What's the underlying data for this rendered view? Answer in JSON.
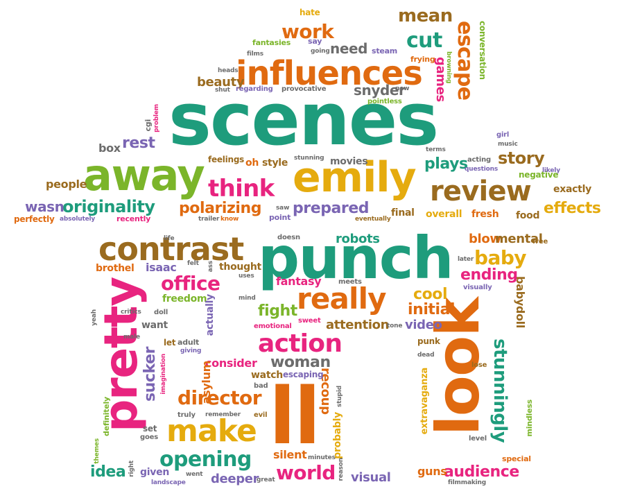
{
  "colors": {
    "teal": "#1e9c7c",
    "orange": "#e06a10",
    "gold": "#e5ab0e",
    "brown": "#9a6b1f",
    "pink": "#e8247f",
    "gray": "#6c6c6c",
    "purple": "#7a65b3",
    "green": "#7bb52a"
  },
  "words": [
    {
      "name": "scenes",
      "text": "scenes"
    },
    {
      "name": "punch",
      "text": "punch"
    },
    {
      "name": "ll",
      "text": "ll"
    },
    {
      "name": "look",
      "text": "look"
    },
    {
      "name": "pretty",
      "text": "pretty"
    },
    {
      "name": "influences",
      "text": "influences"
    },
    {
      "name": "away",
      "text": "away"
    },
    {
      "name": "emily",
      "text": "emily"
    },
    {
      "name": "review",
      "text": "review"
    },
    {
      "name": "contrast",
      "text": "contrast"
    },
    {
      "name": "really",
      "text": "really"
    },
    {
      "name": "make",
      "text": "make"
    },
    {
      "name": "action",
      "text": "action"
    },
    {
      "name": "opening",
      "text": "opening"
    },
    {
      "name": "think",
      "text": "think"
    },
    {
      "name": "originality",
      "text": "originality"
    },
    {
      "name": "office",
      "text": "office"
    },
    {
      "name": "director",
      "text": "director"
    },
    {
      "name": "world",
      "text": "world"
    },
    {
      "name": "work",
      "text": "work"
    },
    {
      "name": "cut",
      "text": "cut"
    },
    {
      "name": "escape",
      "text": "escape"
    },
    {
      "name": "mean",
      "text": "mean"
    },
    {
      "name": "stunningly",
      "text": "stunningly"
    },
    {
      "name": "baby",
      "text": "baby"
    },
    {
      "name": "audience",
      "text": "audience"
    },
    {
      "name": "story",
      "text": "story"
    },
    {
      "name": "plays",
      "text": "plays"
    },
    {
      "name": "effects",
      "text": "effects"
    },
    {
      "name": "woman",
      "text": "woman"
    },
    {
      "name": "polarizing",
      "text": "polarizing"
    },
    {
      "name": "prepared",
      "text": "prepared"
    },
    {
      "name": "wasn",
      "text": "wasn"
    },
    {
      "name": "need",
      "text": "need"
    },
    {
      "name": "games",
      "text": "games"
    },
    {
      "name": "snyder",
      "text": "snyder"
    },
    {
      "name": "beauty",
      "text": "beauty"
    },
    {
      "name": "rest",
      "text": "rest"
    },
    {
      "name": "box",
      "text": "box"
    },
    {
      "name": "people",
      "text": "people"
    },
    {
      "name": "ending",
      "text": "ending"
    },
    {
      "name": "cool",
      "text": "cool"
    },
    {
      "name": "initial",
      "text": "initial"
    },
    {
      "name": "video",
      "text": "video"
    },
    {
      "name": "fight",
      "text": "fight"
    },
    {
      "name": "attention",
      "text": "attention"
    },
    {
      "name": "robots",
      "text": "robots"
    },
    {
      "name": "blow",
      "text": "blow"
    },
    {
      "name": "mental",
      "text": "mental"
    },
    {
      "name": "consider",
      "text": "consider"
    },
    {
      "name": "recoup",
      "text": "recoup"
    },
    {
      "name": "sucker",
      "text": "sucker"
    },
    {
      "name": "idea",
      "text": "idea"
    },
    {
      "name": "visual",
      "text": "visual"
    },
    {
      "name": "deeper",
      "text": "deeper"
    },
    {
      "name": "silent",
      "text": "silent"
    },
    {
      "name": "guns",
      "text": "guns"
    },
    {
      "name": "fantasy",
      "text": "fantasy"
    },
    {
      "name": "thought",
      "text": "thought"
    },
    {
      "name": "freedom",
      "text": "freedom"
    },
    {
      "name": "isaac",
      "text": "isaac"
    },
    {
      "name": "brothel",
      "text": "brothel"
    },
    {
      "name": "final",
      "text": "final"
    },
    {
      "name": "overall",
      "text": "overall"
    },
    {
      "name": "fresh",
      "text": "fresh"
    },
    {
      "name": "food",
      "text": "food"
    },
    {
      "name": "exactly",
      "text": "exactly"
    },
    {
      "name": "negative",
      "text": "negative"
    },
    {
      "name": "movies",
      "text": "movies"
    },
    {
      "name": "style",
      "text": "style"
    },
    {
      "name": "oh",
      "text": "oh"
    },
    {
      "name": "feelings",
      "text": "feelings"
    },
    {
      "name": "recently",
      "text": "recently"
    },
    {
      "name": "perfectly",
      "text": "perfectly"
    },
    {
      "name": "absolutely",
      "text": "absolutely"
    },
    {
      "name": "hate",
      "text": "hate"
    },
    {
      "name": "fantasies",
      "text": "fantasies"
    },
    {
      "name": "say",
      "text": "say"
    },
    {
      "name": "films",
      "text": "films"
    },
    {
      "name": "going",
      "text": "going"
    },
    {
      "name": "steam",
      "text": "steam"
    },
    {
      "name": "frying",
      "text": "frying"
    },
    {
      "name": "browning",
      "text": "browning"
    },
    {
      "name": "conversation",
      "text": "conversation"
    },
    {
      "name": "heads",
      "text": "heads"
    },
    {
      "name": "shut",
      "text": "shut"
    },
    {
      "name": "regarding",
      "text": "regarding"
    },
    {
      "name": "provocative",
      "text": "provocative"
    },
    {
      "name": "pointless",
      "text": "pointless"
    },
    {
      "name": "new",
      "text": "new"
    },
    {
      "name": "problem",
      "text": "problem"
    },
    {
      "name": "cgi",
      "text": "cgi"
    },
    {
      "name": "girl",
      "text": "girl"
    },
    {
      "name": "music",
      "text": "music"
    },
    {
      "name": "terms",
      "text": "terms"
    },
    {
      "name": "acting",
      "text": "acting"
    },
    {
      "name": "questions",
      "text": "questions"
    },
    {
      "name": "likely",
      "text": "likely"
    },
    {
      "name": "stunning",
      "text": "stunning"
    },
    {
      "name": "saw",
      "text": "saw"
    },
    {
      "name": "trailer",
      "text": "trailer"
    },
    {
      "name": "know",
      "text": "know"
    },
    {
      "name": "point",
      "text": "point"
    },
    {
      "name": "eventually",
      "text": "eventually"
    },
    {
      "name": "life",
      "text": "life"
    },
    {
      "name": "doesn",
      "text": "doesn"
    },
    {
      "name": "felt",
      "text": "felt"
    },
    {
      "name": "ass",
      "text": "ass"
    },
    {
      "name": "uses",
      "text": "uses"
    },
    {
      "name": "meets",
      "text": "meets"
    },
    {
      "name": "mind",
      "text": "mind"
    },
    {
      "name": "emotional",
      "text": "emotional"
    },
    {
      "name": "sweet",
      "text": "sweet"
    },
    {
      "name": "tone",
      "text": "tone"
    },
    {
      "name": "later",
      "text": "later"
    },
    {
      "name": "free",
      "text": "free"
    },
    {
      "name": "visually",
      "text": "visually"
    },
    {
      "name": "babydoll",
      "text": "babydoll"
    },
    {
      "name": "critics",
      "text": "critics"
    },
    {
      "name": "doll",
      "text": "doll"
    },
    {
      "name": "yeah",
      "text": "yeah"
    },
    {
      "name": "want",
      "text": "want"
    },
    {
      "name": "male",
      "text": "male"
    },
    {
      "name": "let",
      "text": "let"
    },
    {
      "name": "adult",
      "text": "adult"
    },
    {
      "name": "giving",
      "text": "giving"
    },
    {
      "name": "actually",
      "text": "actually"
    },
    {
      "name": "punk",
      "text": "punk"
    },
    {
      "name": "dead",
      "text": "dead"
    },
    {
      "name": "lose",
      "text": "lose"
    },
    {
      "name": "imagination",
      "text": "imagination"
    },
    {
      "name": "asylum",
      "text": "asylum"
    },
    {
      "name": "watch",
      "text": "watch"
    },
    {
      "name": "escaping",
      "text": "escaping"
    },
    {
      "name": "bad",
      "text": "bad"
    },
    {
      "name": "stupid",
      "text": "stupid"
    },
    {
      "name": "probably",
      "text": "probably"
    },
    {
      "name": "extravaganza",
      "text": "extravaganza"
    },
    {
      "name": "definitely",
      "text": "definitely"
    },
    {
      "name": "truly",
      "text": "truly"
    },
    {
      "name": "remember",
      "text": "remember"
    },
    {
      "name": "evil",
      "text": "evil"
    },
    {
      "name": "mindless",
      "text": "mindless"
    },
    {
      "name": "set",
      "text": "set"
    },
    {
      "name": "goes",
      "text": "goes"
    },
    {
      "name": "themes",
      "text": "themes"
    },
    {
      "name": "level",
      "text": "level"
    },
    {
      "name": "minutes",
      "text": "minutes"
    },
    {
      "name": "special",
      "text": "special"
    },
    {
      "name": "right",
      "text": "right"
    },
    {
      "name": "given",
      "text": "given"
    },
    {
      "name": "went",
      "text": "went"
    },
    {
      "name": "great",
      "text": "great"
    },
    {
      "name": "reason",
      "text": "reason"
    },
    {
      "name": "filmmaking",
      "text": "filmmaking"
    },
    {
      "name": "landscape",
      "text": "landscape"
    }
  ]
}
